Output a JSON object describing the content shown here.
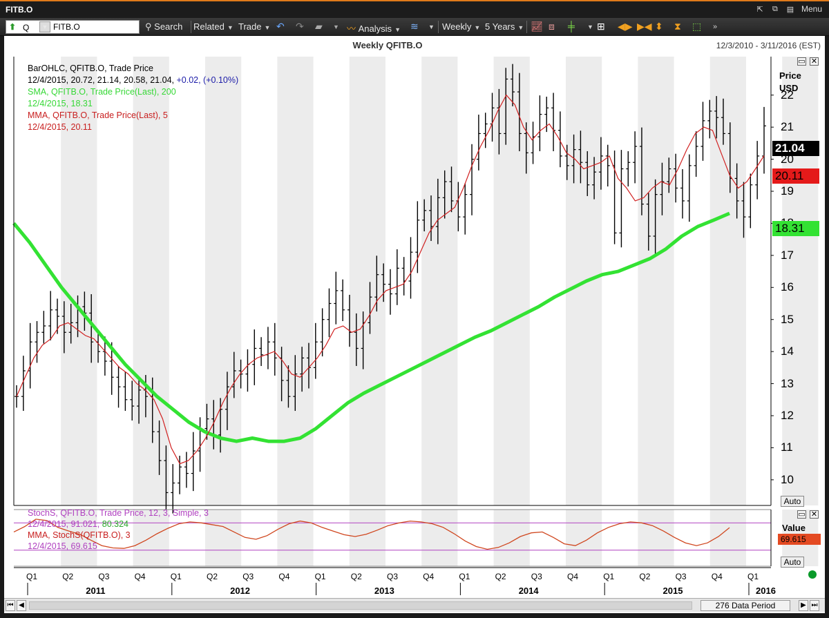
{
  "window": {
    "title": "FITB.O",
    "menu_label": "Menu"
  },
  "toolbar": {
    "source": "Q",
    "symbol": "FITB.O",
    "search": "Search",
    "related": "Related",
    "trade": "Trade",
    "analysis": "Analysis",
    "interval": "Weekly",
    "range": "5 Years"
  },
  "chart": {
    "title": "Weekly QFITB.O",
    "date_range": "12/3/2010 - 3/11/2016 (EST)",
    "price_axis_label": "Price",
    "currency": "USD",
    "value_label": "Value",
    "auto": "Auto"
  },
  "legend": {
    "bar_name": "BarOHLC, QFITB.O, Trade Price",
    "bar_values": "12/4/2015, 20.72, 21.14, 20.58, 21.04,",
    "bar_change": "+0.02, (+0.10%)",
    "sma_name": "SMA, QFITB.O, Trade Price(Last),  200",
    "sma_value": "12/4/2015, 18.31",
    "mma_name": "MMA, QFITB.O, Trade Price(Last),  5",
    "mma_value": "12/4/2015, 20.11",
    "stoch_name": "StochS, QFITB.O, Trade Price,  12, 3, Simple, 3",
    "stoch_values": "12/4/2015, 91.021,",
    "stoch_value2": "80.324",
    "stoch_mma_name": "MMA, StochS(QFITB.O),  3",
    "stoch_mma_value": "12/4/2015, 69.615"
  },
  "tags": {
    "last": "21.04",
    "mma": "20.11",
    "sma": "18.31",
    "stoch_mma": "69.615"
  },
  "status": {
    "period": "276 Data Period"
  },
  "chart_data": {
    "type": "line",
    "x_quarters": [
      "Q1",
      "Q2",
      "Q3",
      "Q4",
      "Q1",
      "Q2",
      "Q3",
      "Q4",
      "Q1",
      "Q2",
      "Q3",
      "Q4",
      "Q1",
      "Q2",
      "Q3",
      "Q4",
      "Q1",
      "Q2",
      "Q3",
      "Q4",
      "Q1"
    ],
    "x_years": [
      "2011",
      "2012",
      "2013",
      "2014",
      "2015",
      "2016"
    ],
    "y_ticks": [
      10,
      11,
      12,
      13,
      14,
      15,
      16,
      17,
      18,
      19,
      20,
      21,
      22
    ],
    "ylim": [
      9.2,
      23.2
    ],
    "price": [
      12.6,
      13.4,
      14.3,
      14.6,
      14.8,
      15.3,
      15.1,
      14.6,
      14.9,
      15.4,
      15.2,
      14.3,
      14.0,
      13.7,
      13.2,
      12.9,
      12.5,
      12.3,
      12.8,
      12.6,
      11.5,
      10.6,
      9.6,
      9.9,
      10.4,
      10.2,
      10.9,
      11.6,
      11.9,
      11.4,
      12.2,
      12.9,
      13.4,
      13.3,
      13.6,
      14.1,
      13.9,
      14.3,
      13.8,
      13.1,
      12.6,
      13.3,
      13.8,
      13.5,
      14.3,
      15.0,
      15.5,
      15.9,
      15.3,
      14.6,
      14.1,
      14.9,
      15.7,
      16.4,
      16.1,
      15.8,
      16.6,
      16.2,
      17.1,
      18.1,
      18.4,
      17.9,
      18.8,
      19.3,
      18.7,
      18.2,
      18.9,
      20.0,
      20.8,
      21.1,
      21.6,
      20.8,
      22.5,
      22.1,
      20.8,
      20.2,
      20.7,
      21.4,
      21.6,
      20.9,
      20.1,
      19.8,
      20.3,
      19.9,
      19.2,
      19.6,
      20.1,
      19.8,
      17.7,
      19.7,
      19.9,
      20.4,
      18.6,
      17.6,
      18.9,
      19.3,
      19.7,
      19.1,
      18.7,
      19.8,
      20.4,
      21.2,
      21.5,
      21.3,
      20.8,
      19.4,
      18.7,
      18.2,
      19.2,
      20.1,
      21.04
    ],
    "mma": [
      12.6,
      13.2,
      13.8,
      14.2,
      14.4,
      14.8,
      14.9,
      14.7,
      14.5,
      14.4,
      14.1,
      13.8,
      13.5,
      13.3,
      13.0,
      12.8,
      12.5,
      11.9,
      11.0,
      10.5,
      10.6,
      10.9,
      11.3,
      11.8,
      12.4,
      12.9,
      13.3,
      13.6,
      13.8,
      13.9,
      14.0,
      13.7,
      13.3,
      13.2,
      13.5,
      13.8,
      14.2,
      14.7,
      14.8,
      14.6,
      14.7,
      15.1,
      15.6,
      15.9,
      16.0,
      16.1,
      16.5,
      17.1,
      17.7,
      18.1,
      18.3,
      18.5,
      19.1,
      19.8,
      20.4,
      20.9,
      21.5,
      22.0,
      21.7,
      21.0,
      20.6,
      20.9,
      21.1,
      20.7,
      20.2,
      20.0,
      19.7,
      19.8,
      19.9,
      20.1,
      19.4,
      19.1,
      18.7,
      18.8,
      19.1,
      19.3,
      19.2,
      19.7,
      20.3,
      20.8,
      21.0,
      20.9,
      20.2,
      19.5,
      19.1,
      19.3,
      19.7,
      20.11
    ],
    "sma": [
      18.0,
      17.4,
      16.7,
      16.0,
      15.4,
      14.8,
      14.2,
      13.6,
      13.1,
      12.6,
      12.2,
      11.8,
      11.5,
      11.3,
      11.2,
      11.3,
      11.2,
      11.2,
      11.3,
      11.6,
      12.0,
      12.4,
      12.7,
      12.95,
      13.2,
      13.45,
      13.7,
      13.95,
      14.2,
      14.45,
      14.65,
      14.9,
      15.15,
      15.4,
      15.7,
      15.95,
      16.2,
      16.4,
      16.5,
      16.7,
      16.9,
      17.2,
      17.6,
      17.9,
      18.1,
      18.31
    ],
    "stoch": [
      60,
      72,
      88,
      85,
      70,
      62,
      55,
      42,
      30,
      25,
      24,
      30,
      42,
      56,
      68,
      78,
      82,
      80,
      76,
      72,
      60,
      48,
      44,
      52,
      66,
      78,
      84,
      80,
      70,
      62,
      54,
      50,
      55,
      64,
      74,
      80,
      84,
      82,
      78,
      70,
      56,
      40,
      28,
      22,
      26,
      36,
      50,
      58,
      60,
      48,
      34,
      30,
      42,
      58,
      70,
      78,
      82,
      80,
      74,
      62,
      48,
      36,
      30,
      36,
      50,
      69.615
    ]
  }
}
